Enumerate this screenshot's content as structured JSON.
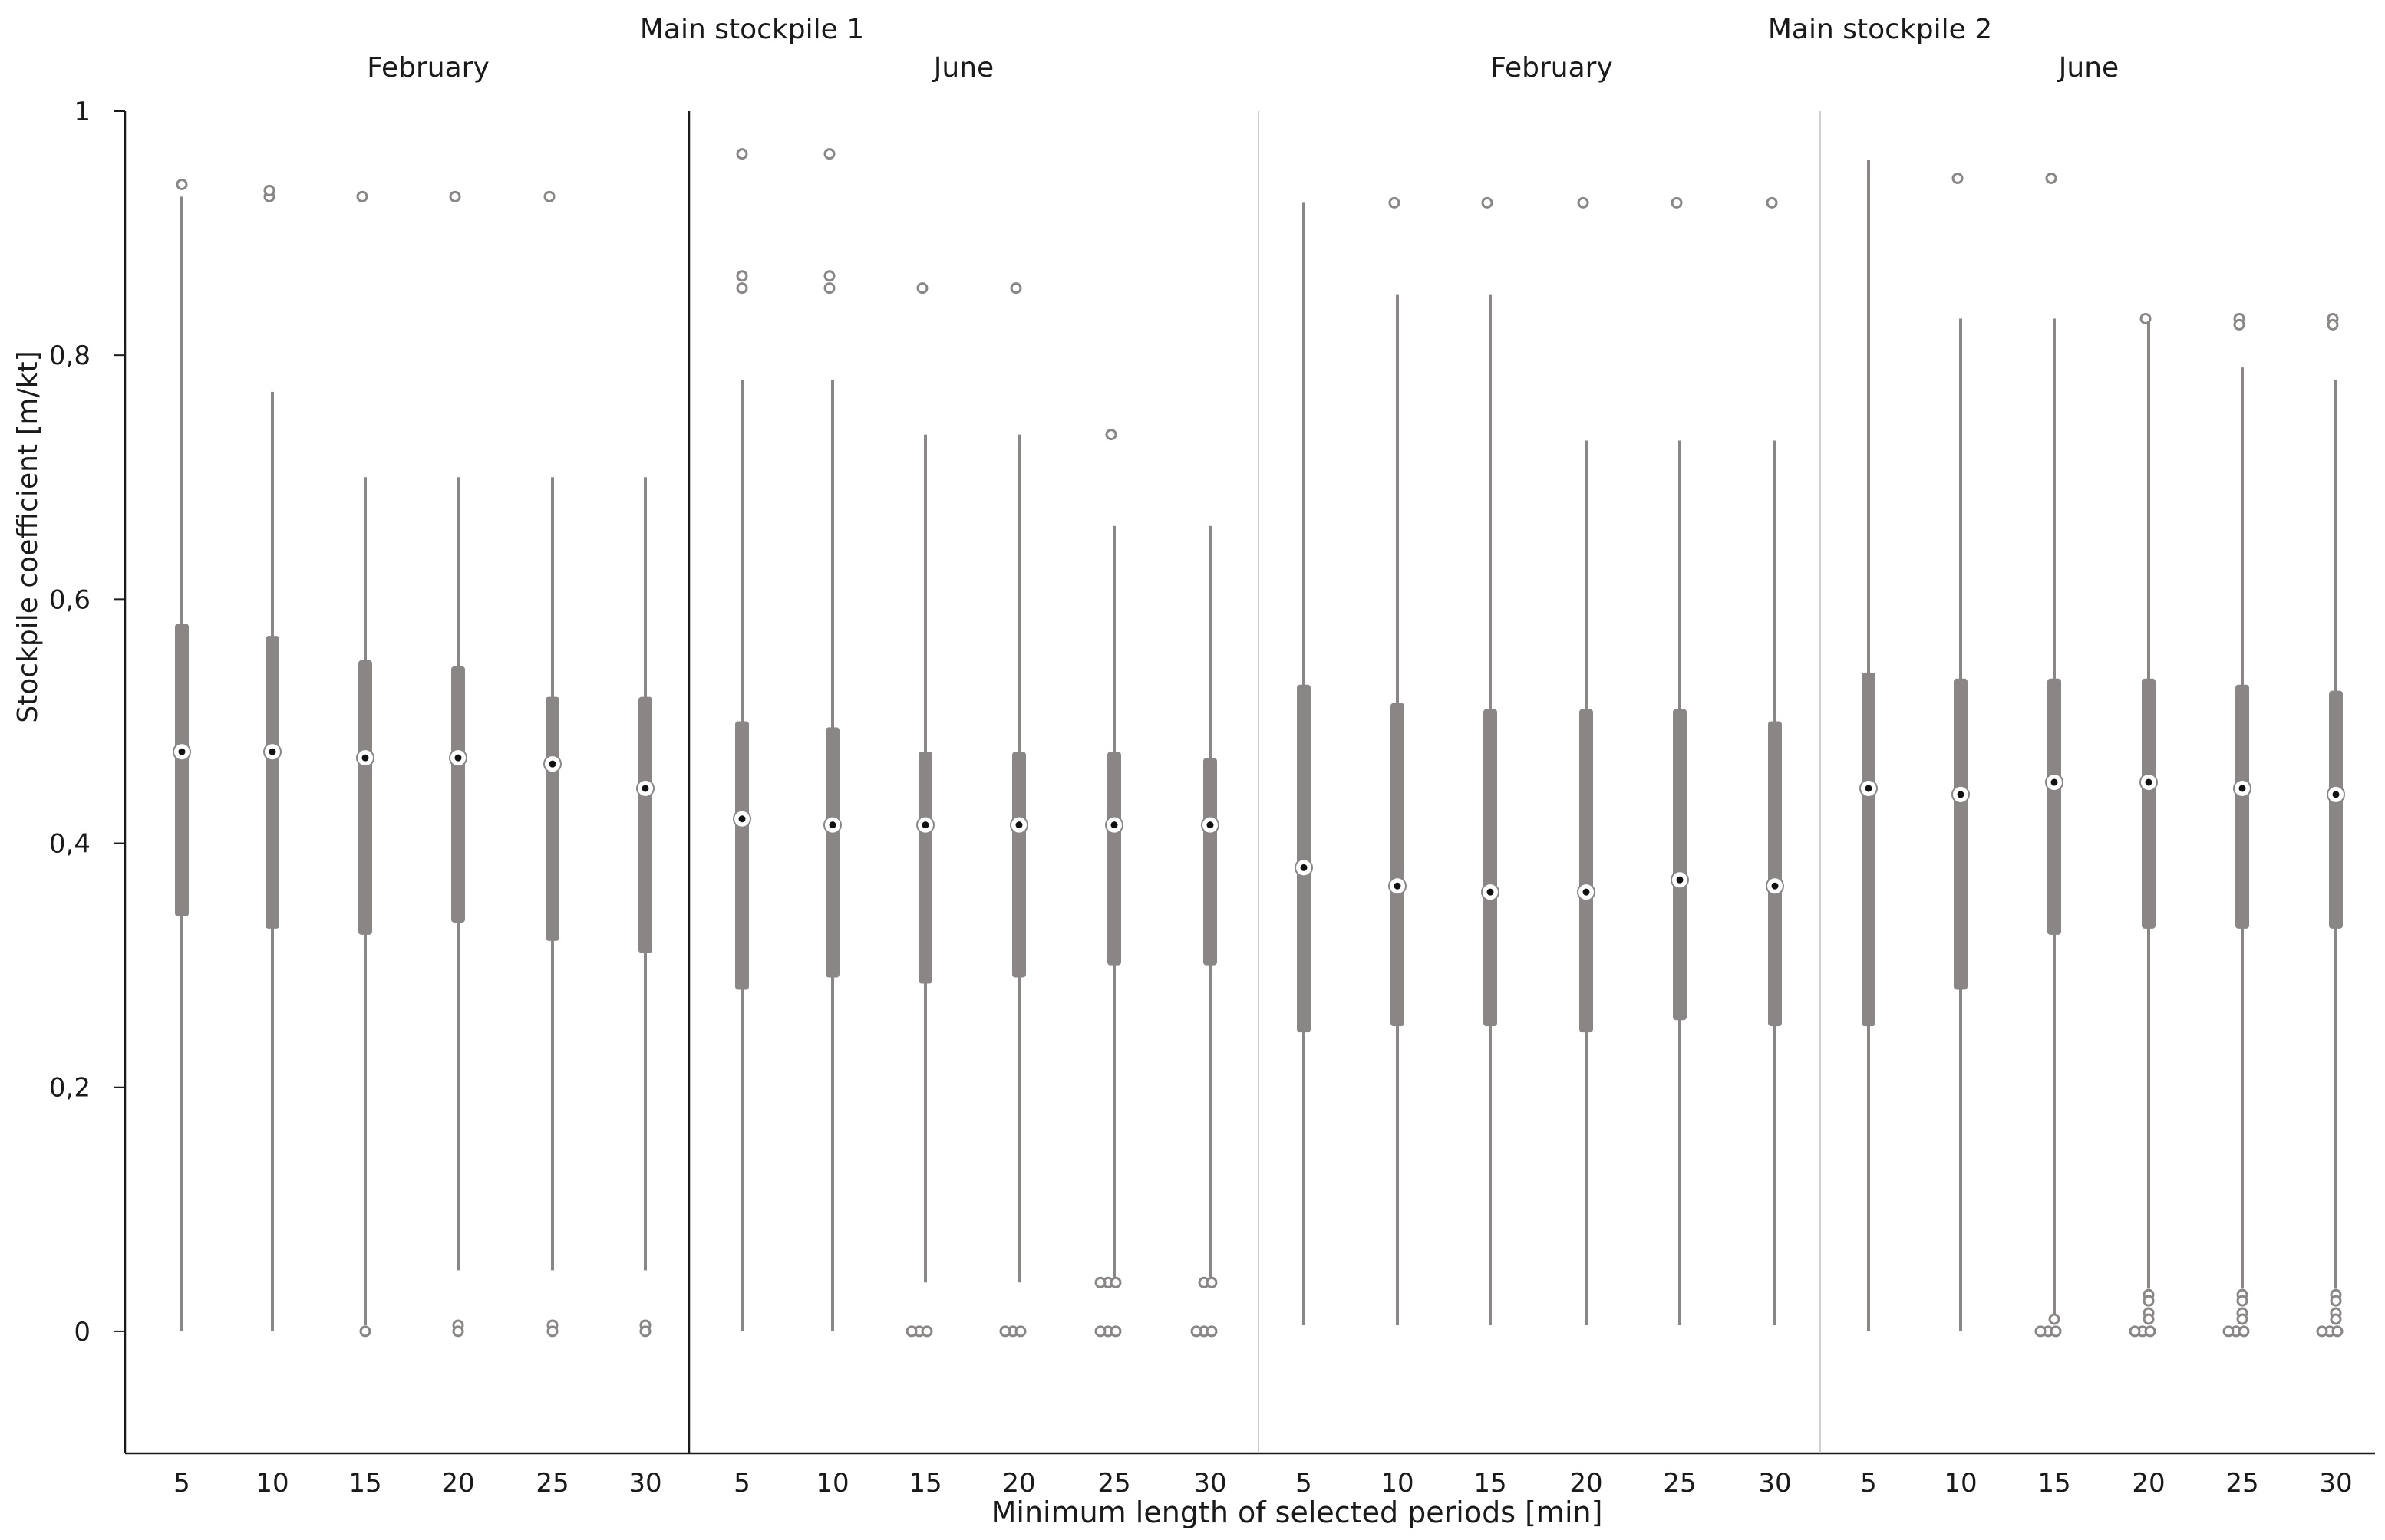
{
  "chart_data": {
    "type": "box",
    "xlabel": "Minimum length of selected periods [min]",
    "ylabel": "Stockpile coefficient [m/kt]",
    "ylim": [
      -0.1,
      1.0
    ],
    "y_ticks": [
      {
        "value": 0,
        "label": "0"
      },
      {
        "value": 0.2,
        "label": "0,2"
      },
      {
        "value": 0.4,
        "label": "0,4"
      },
      {
        "value": 0.6,
        "label": "0,6"
      },
      {
        "value": 0.8,
        "label": "0,8"
      },
      {
        "value": 1,
        "label": "1"
      }
    ],
    "categories": [
      "5",
      "10",
      "15",
      "20",
      "25",
      "30"
    ],
    "groups": [
      {
        "name": "Main stockpile 1",
        "panels": [
          0,
          1
        ]
      },
      {
        "name": "Main stockpile 2",
        "panels": [
          2,
          3
        ]
      }
    ],
    "panels": [
      {
        "title": "February",
        "boxes": [
          {
            "x": "5",
            "min": 0,
            "q1": 0.34,
            "median": 0.475,
            "q3": 0.58,
            "max": 0.93,
            "outliers": [
              0.94
            ]
          },
          {
            "x": "10",
            "min": 0,
            "q1": 0.33,
            "median": 0.475,
            "q3": 0.57,
            "max": 0.77,
            "outliers": [
              0.93,
              0.935
            ]
          },
          {
            "x": "15",
            "min": 0.005,
            "q1": 0.325,
            "median": 0.47,
            "q3": 0.55,
            "max": 0.7,
            "outliers": [
              0.93,
              0
            ]
          },
          {
            "x": "20",
            "min": 0.05,
            "q1": 0.335,
            "median": 0.47,
            "q3": 0.545,
            "max": 0.7,
            "outliers": [
              0.93,
              0.005,
              0
            ]
          },
          {
            "x": "25",
            "min": 0.05,
            "q1": 0.32,
            "median": 0.465,
            "q3": 0.52,
            "max": 0.7,
            "outliers": [
              0.93,
              0.005,
              0
            ]
          },
          {
            "x": "30",
            "min": 0.05,
            "q1": 0.31,
            "median": 0.445,
            "q3": 0.52,
            "max": 0.7,
            "outliers": [
              0.005,
              0
            ]
          }
        ]
      },
      {
        "title": "June",
        "boxes": [
          {
            "x": "5",
            "min": 0,
            "q1": 0.28,
            "median": 0.42,
            "q3": 0.5,
            "max": 0.78,
            "outliers": [
              0.965,
              0.865,
              0.855
            ]
          },
          {
            "x": "10",
            "min": 0,
            "q1": 0.29,
            "median": 0.415,
            "q3": 0.495,
            "max": 0.78,
            "outliers": [
              0.965,
              0.865,
              0.855
            ]
          },
          {
            "x": "15",
            "min": 0.04,
            "q1": 0.285,
            "median": 0.415,
            "q3": 0.475,
            "max": 0.735,
            "outliers": [
              0.855,
              0,
              0,
              0
            ]
          },
          {
            "x": "20",
            "min": 0.04,
            "q1": 0.29,
            "median": 0.415,
            "q3": 0.475,
            "max": 0.735,
            "outliers": [
              0.855,
              0,
              0,
              0
            ]
          },
          {
            "x": "25",
            "min": 0.04,
            "q1": 0.3,
            "median": 0.415,
            "q3": 0.475,
            "max": 0.66,
            "outliers": [
              0.735,
              0.04,
              0.04,
              0.04,
              0,
              0,
              0
            ]
          },
          {
            "x": "30",
            "min": 0.04,
            "q1": 0.3,
            "median": 0.415,
            "q3": 0.47,
            "max": 0.66,
            "outliers": [
              0.04,
              0.04,
              0,
              0,
              0
            ]
          }
        ]
      },
      {
        "title": "February",
        "boxes": [
          {
            "x": "5",
            "min": 0.005,
            "q1": 0.245,
            "median": 0.38,
            "q3": 0.53,
            "max": 0.925,
            "outliers": []
          },
          {
            "x": "10",
            "min": 0.005,
            "q1": 0.25,
            "median": 0.365,
            "q3": 0.515,
            "max": 0.85,
            "outliers": [
              0.925
            ]
          },
          {
            "x": "15",
            "min": 0.005,
            "q1": 0.25,
            "median": 0.36,
            "q3": 0.51,
            "max": 0.85,
            "outliers": [
              0.925
            ]
          },
          {
            "x": "20",
            "min": 0.005,
            "q1": 0.245,
            "median": 0.36,
            "q3": 0.51,
            "max": 0.73,
            "outliers": [
              0.925
            ]
          },
          {
            "x": "25",
            "min": 0.005,
            "q1": 0.255,
            "median": 0.37,
            "q3": 0.51,
            "max": 0.73,
            "outliers": [
              0.925
            ]
          },
          {
            "x": "30",
            "min": 0.005,
            "q1": 0.25,
            "median": 0.365,
            "q3": 0.5,
            "max": 0.73,
            "outliers": [
              0.925
            ]
          }
        ]
      },
      {
        "title": "June",
        "boxes": [
          {
            "x": "5",
            "min": 0,
            "q1": 0.25,
            "median": 0.445,
            "q3": 0.54,
            "max": 0.96,
            "outliers": []
          },
          {
            "x": "10",
            "min": 0,
            "q1": 0.28,
            "median": 0.44,
            "q3": 0.535,
            "max": 0.83,
            "outliers": [
              0.945
            ]
          },
          {
            "x": "15",
            "min": 0.01,
            "q1": 0.325,
            "median": 0.45,
            "q3": 0.535,
            "max": 0.83,
            "outliers": [
              0.945,
              0.01,
              0,
              0,
              0
            ]
          },
          {
            "x": "20",
            "min": 0.035,
            "q1": 0.33,
            "median": 0.45,
            "q3": 0.535,
            "max": 0.83,
            "outliers": [
              0.83,
              0.03,
              0.025,
              0.015,
              0.01,
              0,
              0,
              0
            ]
          },
          {
            "x": "25",
            "min": 0.035,
            "q1": 0.33,
            "median": 0.445,
            "q3": 0.53,
            "max": 0.79,
            "outliers": [
              0.83,
              0.825,
              0.03,
              0.025,
              0.015,
              0.01,
              0,
              0,
              0
            ]
          },
          {
            "x": "30",
            "min": 0.035,
            "q1": 0.33,
            "median": 0.44,
            "q3": 0.525,
            "max": 0.78,
            "outliers": [
              0.83,
              0.825,
              0.03,
              0.025,
              0.015,
              0.01,
              0,
              0,
              0
            ]
          }
        ]
      }
    ],
    "colors": {
      "box": "#8a8686",
      "whisker": "#8a8686",
      "outlier": "#8a8686",
      "median_fill": "#ffffff",
      "median_dot": "#111111",
      "axis": "#1a1a1a",
      "divider_strong": "#1a1a1a",
      "divider_light": "#cfcfcf"
    },
    "grid": false,
    "legend": "none"
  }
}
